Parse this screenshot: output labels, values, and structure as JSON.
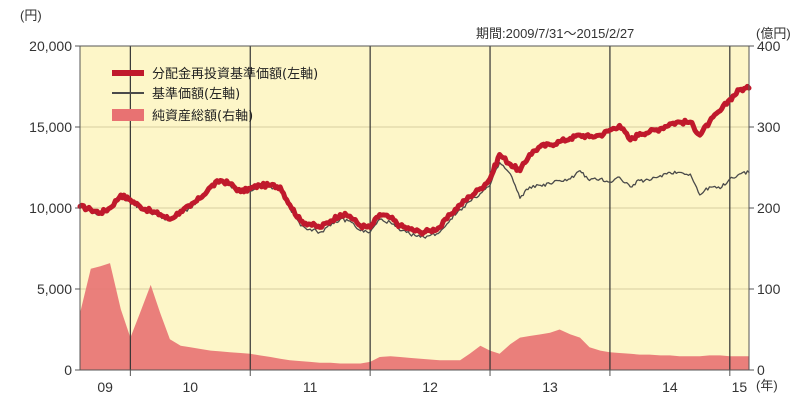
{
  "chart_data": {
    "type": "line",
    "period_note": "期間:2009/7/31～2015/2/27",
    "left_axis": {
      "unit": "(円)",
      "ylim": [
        0,
        20000
      ],
      "ticks": [
        "0",
        "5,000",
        "10,000",
        "15,000",
        "20,000"
      ]
    },
    "right_axis": {
      "unit": "(億円)",
      "ylim": [
        0,
        400
      ],
      "ticks": [
        "0",
        "100",
        "200",
        "300",
        "400"
      ]
    },
    "x_axis": {
      "unit": "(年)",
      "xlim": [
        2009.58,
        2015.16
      ],
      "year_labels": [
        "09",
        "10",
        "11",
        "12",
        "13",
        "14",
        "15"
      ]
    },
    "colors": {
      "background": "#fdf6c8",
      "reinvested_nav": "#c0192c",
      "nav": "#4a4a4a",
      "net_assets": "#e87272",
      "year_lines": "#333333"
    },
    "legend_position": "top-left",
    "series": [
      {
        "name": "分配金再投資基準価額(左軸)",
        "axis": "left",
        "style": "thick-line",
        "x": [
          2009.58,
          2009.67,
          2009.75,
          2009.83,
          2009.92,
          2010.0,
          2010.08,
          2010.17,
          2010.25,
          2010.33,
          2010.42,
          2010.5,
          2010.58,
          2010.67,
          2010.75,
          2010.83,
          2010.92,
          2011.0,
          2011.08,
          2011.17,
          2011.25,
          2011.33,
          2011.42,
          2011.5,
          2011.58,
          2011.67,
          2011.75,
          2011.83,
          2011.92,
          2012.0,
          2012.08,
          2012.17,
          2012.25,
          2012.33,
          2012.42,
          2012.5,
          2012.58,
          2012.67,
          2012.75,
          2012.83,
          2012.92,
          2013.0,
          2013.08,
          2013.17,
          2013.25,
          2013.33,
          2013.42,
          2013.5,
          2013.58,
          2013.67,
          2013.75,
          2013.83,
          2013.92,
          2014.0,
          2014.08,
          2014.17,
          2014.25,
          2014.33,
          2014.42,
          2014.5,
          2014.58,
          2014.67,
          2014.75,
          2014.83,
          2014.92,
          2015.0,
          2015.08,
          2015.16
        ],
        "values": [
          10100,
          9900,
          9700,
          10000,
          10800,
          10500,
          10100,
          9800,
          9600,
          9300,
          9800,
          10100,
          10600,
          11300,
          11700,
          11500,
          11000,
          11200,
          11400,
          11400,
          11300,
          10200,
          9200,
          9000,
          8800,
          9200,
          9600,
          9500,
          8900,
          8800,
          9600,
          9400,
          8900,
          8700,
          8500,
          8600,
          8800,
          9600,
          10200,
          10700,
          11200,
          11800,
          13300,
          12700,
          12300,
          13300,
          13800,
          13900,
          14100,
          14300,
          14500,
          14400,
          14500,
          14800,
          15100,
          14200,
          14600,
          14700,
          14900,
          15200,
          15300,
          15300,
          14500,
          15300,
          16000,
          16700,
          17300,
          17400
        ]
      },
      {
        "name": "基準価額(左軸)",
        "axis": "left",
        "style": "thin-line",
        "x": [
          2009.58,
          2009.67,
          2009.75,
          2009.83,
          2009.92,
          2010.0,
          2010.08,
          2010.17,
          2010.25,
          2010.33,
          2010.42,
          2010.5,
          2010.58,
          2010.67,
          2010.75,
          2010.83,
          2010.92,
          2011.0,
          2011.08,
          2011.17,
          2011.25,
          2011.33,
          2011.42,
          2011.5,
          2011.58,
          2011.67,
          2011.75,
          2011.83,
          2011.92,
          2012.0,
          2012.08,
          2012.17,
          2012.25,
          2012.33,
          2012.42,
          2012.5,
          2012.58,
          2012.67,
          2012.75,
          2012.83,
          2012.92,
          2013.0,
          2013.08,
          2013.17,
          2013.25,
          2013.33,
          2013.42,
          2013.5,
          2013.58,
          2013.67,
          2013.75,
          2013.83,
          2013.92,
          2014.0,
          2014.08,
          2014.17,
          2014.25,
          2014.33,
          2014.42,
          2014.5,
          2014.58,
          2014.67,
          2014.75,
          2014.83,
          2014.92,
          2015.0,
          2015.08,
          2015.16
        ],
        "values": [
          10000,
          9800,
          9600,
          9900,
          10700,
          10400,
          10000,
          9700,
          9500,
          9200,
          9700,
          10000,
          10500,
          11200,
          11600,
          11400,
          10900,
          11100,
          11300,
          11300,
          11200,
          10000,
          8900,
          8700,
          8500,
          8900,
          9300,
          9200,
          8600,
          8500,
          9300,
          9100,
          8600,
          8400,
          8200,
          8300,
          8500,
          9300,
          9900,
          10400,
          10900,
          11400,
          12800,
          12100,
          10600,
          11300,
          11400,
          11500,
          11700,
          11800,
          12300,
          11700,
          11800,
          11600,
          11900,
          11300,
          11700,
          11700,
          12000,
          12200,
          12200,
          12100,
          10800,
          11300,
          11200,
          11800,
          12100,
          12200
        ]
      },
      {
        "name": "純資産総額(右軸)",
        "axis": "right",
        "style": "area",
        "x": [
          2009.58,
          2009.67,
          2009.75,
          2009.83,
          2009.92,
          2010.0,
          2010.08,
          2010.17,
          2010.25,
          2010.33,
          2010.42,
          2010.5,
          2010.58,
          2010.67,
          2010.75,
          2010.83,
          2010.92,
          2011.0,
          2011.08,
          2011.17,
          2011.25,
          2011.33,
          2011.42,
          2011.5,
          2011.58,
          2011.67,
          2011.75,
          2011.83,
          2011.92,
          2012.0,
          2012.08,
          2012.17,
          2012.25,
          2012.33,
          2012.42,
          2012.5,
          2012.58,
          2012.67,
          2012.75,
          2012.83,
          2012.92,
          2013.0,
          2013.08,
          2013.17,
          2013.25,
          2013.33,
          2013.42,
          2013.5,
          2013.58,
          2013.67,
          2013.75,
          2013.83,
          2013.92,
          2014.0,
          2014.08,
          2014.17,
          2014.25,
          2014.33,
          2014.42,
          2014.5,
          2014.58,
          2014.67,
          2014.75,
          2014.83,
          2014.92,
          2015.0,
          2015.08,
          2015.16
        ],
        "values": [
          70,
          125,
          128,
          132,
          75,
          40,
          70,
          105,
          70,
          38,
          30,
          28,
          26,
          24,
          23,
          22,
          21,
          20,
          18,
          16,
          14,
          12,
          11,
          10,
          9,
          9,
          8,
          8,
          8,
          10,
          16,
          17,
          16,
          15,
          14,
          13,
          12,
          12,
          12,
          20,
          30,
          24,
          20,
          32,
          40,
          42,
          44,
          46,
          50,
          44,
          40,
          28,
          24,
          22,
          21,
          20,
          19,
          19,
          18,
          18,
          17,
          17,
          17,
          18,
          18,
          17,
          17,
          17
        ]
      }
    ]
  }
}
